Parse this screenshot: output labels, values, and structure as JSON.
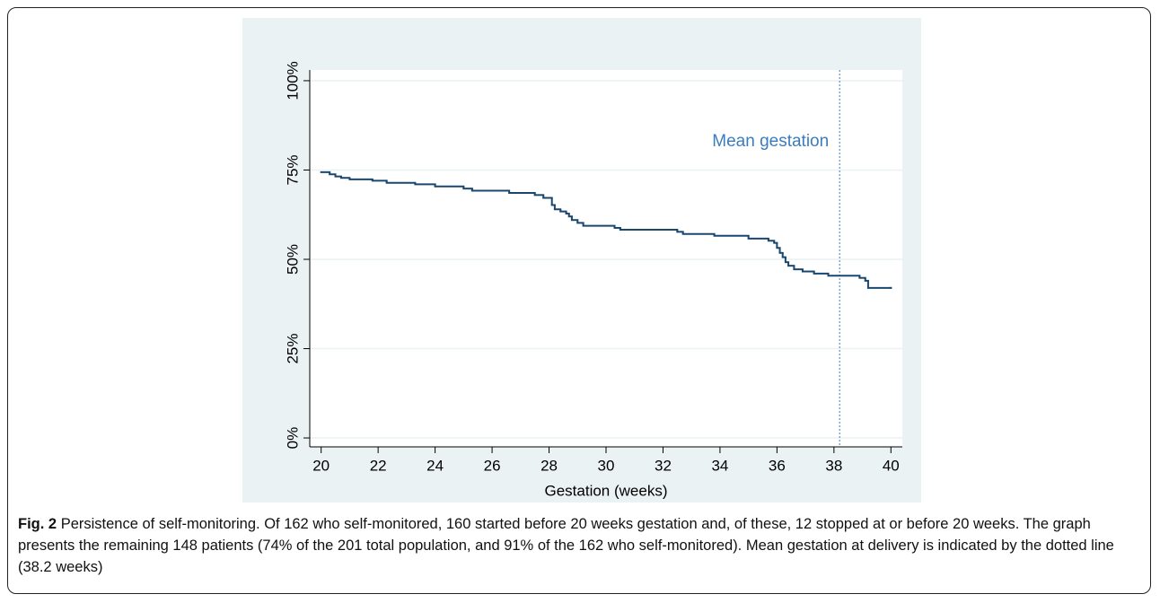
{
  "chart_data": {
    "type": "line",
    "step": true,
    "xlabel": "Gestation (weeks)",
    "x": [
      20.0,
      20.3,
      20.5,
      20.7,
      21.0,
      21.8,
      22.3,
      23.3,
      24.0,
      25.0,
      25.3,
      26.6,
      27.5,
      27.8,
      28.1,
      28.2,
      28.4,
      28.6,
      28.7,
      28.8,
      29.0,
      29.2,
      30.3,
      30.5,
      32.5,
      32.7,
      33.8,
      35.0,
      35.7,
      35.9,
      36.0,
      36.1,
      36.2,
      36.3,
      36.4,
      36.6,
      36.9,
      37.3,
      37.8,
      38.9,
      39.1,
      39.2,
      40.0
    ],
    "values": [
      74.4,
      73.8,
      73.2,
      72.8,
      72.4,
      72.0,
      71.4,
      71.0,
      70.4,
      69.8,
      69.2,
      68.6,
      68.0,
      67.2,
      65.2,
      64.0,
      63.4,
      62.8,
      62.0,
      61.0,
      60.2,
      59.4,
      58.8,
      58.3,
      57.7,
      57.1,
      56.6,
      55.8,
      55.2,
      54.6,
      53.2,
      51.8,
      50.6,
      49.2,
      48.2,
      47.2,
      46.6,
      46.0,
      45.4,
      44.8,
      44.0,
      42.0,
      42.0
    ],
    "color": "#1a476f",
    "xlim": [
      19.6,
      40.4
    ],
    "xticks": [
      20,
      22,
      24,
      26,
      28,
      30,
      32,
      34,
      36,
      38,
      40
    ],
    "ylim": [
      -2.5,
      103
    ],
    "yticks": [
      {
        "value": 0,
        "label": "0%"
      },
      {
        "value": 25,
        "label": "25%"
      },
      {
        "value": 50,
        "label": "50%"
      },
      {
        "value": 75,
        "label": "75%"
      },
      {
        "value": 100,
        "label": "100%"
      }
    ],
    "grid": true,
    "annotation": {
      "text": "Mean gestation",
      "x": 38.2,
      "color": "#3a7dbf"
    }
  },
  "caption": {
    "label": "Fig. 2",
    "text": "Persistence of self-monitoring. Of 162 who self-monitored, 160 started before 20 weeks gestation and, of these, 12 stopped at or before 20 weeks. The graph presents the remaining 148 patients (74% of the 201 total population, and 91% of the 162 who self-monitored). Mean gestation at delivery is indicated by the dotted line (38.2 weeks)"
  }
}
